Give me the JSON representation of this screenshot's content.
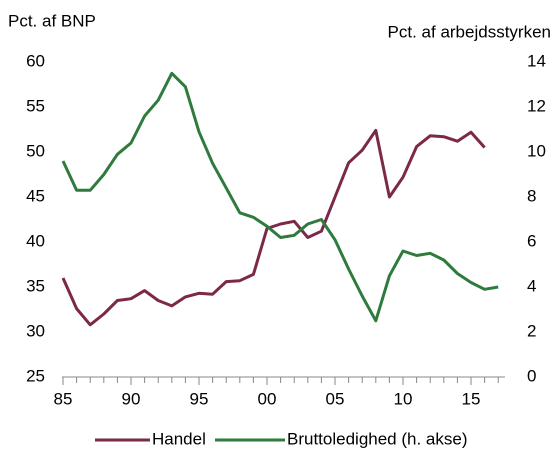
{
  "chart_data": {
    "type": "line",
    "y_label": "Pct. af BNP",
    "y2_label": "Pct. af arbejdsstyrken",
    "x": [
      1985,
      1986,
      1987,
      1988,
      1989,
      1990,
      1991,
      1992,
      1993,
      1994,
      1995,
      1996,
      1997,
      1998,
      1999,
      2000,
      2001,
      2002,
      2003,
      2004,
      2005,
      2006,
      2007,
      2008,
      2009,
      2010,
      2011,
      2012,
      2013,
      2014,
      2015,
      2016,
      2017
    ],
    "series": [
      {
        "name": "Handel",
        "color": "#7b2946",
        "axis": "y",
        "values": [
          36,
          32.6,
          30.8,
          32,
          33.5,
          33.7,
          34.6,
          33.5,
          32.9,
          33.9,
          34.3,
          34.2,
          35.6,
          35.7,
          36.4,
          41.5,
          42,
          42.3,
          40.5,
          41.2,
          45,
          48.8,
          50.2,
          52.4,
          45,
          47.2,
          50.6,
          51.8,
          51.7,
          51.2,
          52.2,
          50.5,
          null
        ]
      },
      {
        "name": "Bruttoledighed (h. akse)",
        "color": "#2e7b3d",
        "axis": "y2",
        "values": [
          9.6,
          8.3,
          8.3,
          9,
          9.9,
          10.4,
          11.6,
          12.3,
          13.5,
          12.9,
          10.9,
          9.5,
          8.4,
          7.3,
          7.1,
          6.7,
          6.2,
          6.3,
          6.8,
          7,
          6.1,
          4.8,
          3.6,
          2.5,
          4.5,
          5.6,
          5.4,
          5.5,
          5.2,
          4.6,
          4.2,
          3.9,
          4
        ]
      }
    ],
    "xlim": [
      1985,
      2017.5
    ],
    "xticks": [
      {
        "value": 1985,
        "label": "85"
      },
      {
        "value": 1990,
        "label": "90"
      },
      {
        "value": 1995,
        "label": "95"
      },
      {
        "value": 2000,
        "label": "00"
      },
      {
        "value": 2005,
        "label": "05"
      },
      {
        "value": 2010,
        "label": "10"
      },
      {
        "value": 2015,
        "label": "15"
      }
    ],
    "xminor_ticks": [
      1985,
      1986,
      1987,
      1988,
      1989,
      1990,
      1991,
      1992,
      1993,
      1994,
      1995,
      1996,
      1997,
      1998,
      1999,
      2000,
      2001,
      2002,
      2003,
      2004,
      2005,
      2006,
      2007,
      2008,
      2009,
      2010,
      2011,
      2012,
      2013,
      2014,
      2015,
      2016,
      2017
    ],
    "ylim": [
      25,
      60
    ],
    "yticks": [
      25,
      30,
      35,
      40,
      45,
      50,
      55,
      60
    ],
    "y2lim": [
      0,
      14
    ],
    "y2ticks": [
      0,
      2,
      4,
      6,
      8,
      10,
      12,
      14
    ],
    "grid": false,
    "legend": "bottom"
  }
}
